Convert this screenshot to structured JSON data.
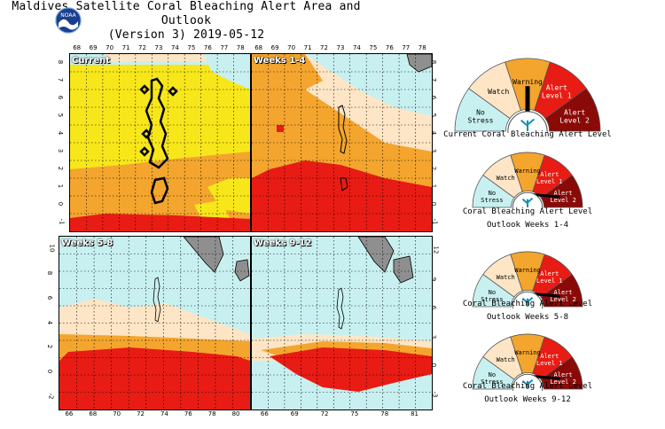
{
  "title_line1": "Maldives Satellite Coral Bleaching Alert Area and Outlook",
  "title_line2": "(Version 3) 2019-05-12",
  "logo_text": "NOAA",
  "colors": {
    "no_stress": "#c8f0f0",
    "watch": "#fde5c5",
    "warning": "#f4a52e",
    "alert1": "#e81c14",
    "alert2": "#8a0a08",
    "current_watch_yellow": "#f7e61a",
    "land": "#8f8f8f"
  },
  "panels": {
    "current": {
      "label": "Current"
    },
    "w14": {
      "label": "Weeks 1-4"
    },
    "w58": {
      "label": "Weeks 5-8"
    },
    "w912": {
      "label": "Weeks 9-12"
    }
  },
  "ticks": {
    "top_lon": [
      "68",
      "69",
      "70",
      "71",
      "72",
      "73",
      "74",
      "75",
      "76",
      "77",
      "78"
    ],
    "top_lat_left": [
      "8",
      "7",
      "6",
      "5",
      "4",
      "3",
      "2",
      "1",
      "0",
      "-1"
    ],
    "top_lat_right": [
      "8",
      "7",
      "6",
      "5",
      "4",
      "3",
      "2",
      "1",
      "0",
      "-1"
    ],
    "bot_lon": [
      "66",
      "68",
      "70",
      "72",
      "74",
      "76",
      "78",
      "80"
    ],
    "bot_lon_right": [
      "66",
      "69",
      "72",
      "75",
      "78",
      "81"
    ],
    "bot_lat_left": [
      "10",
      "8",
      "6",
      "4",
      "2",
      "0",
      "-2"
    ],
    "bot_lat_right": [
      "12",
      "9",
      "6",
      "3",
      "0",
      "-3"
    ]
  },
  "gauges": [
    {
      "caption1": "Current Coral Bleaching Alert Level",
      "caption2": "",
      "level": 2
    },
    {
      "caption1": "Coral Bleaching Alert Level",
      "caption2": "Outlook Weeks 1-4",
      "level": 4
    },
    {
      "caption1": "Coral Bleaching Alert Level",
      "caption2": "Outlook Weeks 5-8",
      "level": 4
    },
    {
      "caption1": "Coral Bleaching Alert Level",
      "caption2": "Outlook Weeks 9-12",
      "level": 4
    }
  ],
  "gauge_labels": {
    "no_stress_1": "No",
    "no_stress_2": "Stress",
    "watch": "Watch",
    "warning": "Warning",
    "alert1_1": "Alert",
    "alert1_2": "Level 1",
    "alert2_1": "Alert",
    "alert2_2": "Level 2"
  }
}
